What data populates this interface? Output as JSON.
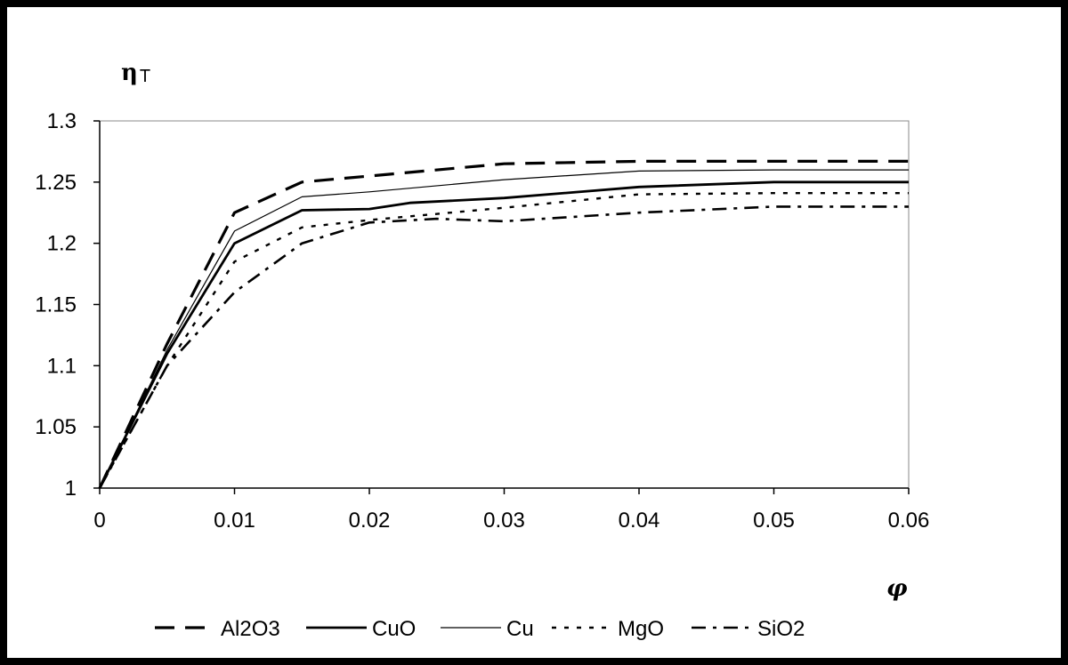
{
  "chart_data": {
    "type": "line",
    "ylabel_main": "η",
    "ylabel_sub": "T",
    "xlabel": "φ",
    "xlim": [
      0,
      0.06
    ],
    "ylim": [
      1,
      1.3
    ],
    "xticks": [
      "0",
      "0.01",
      "0.02",
      "0.03",
      "0.04",
      "0.05",
      "0.06"
    ],
    "yticks": [
      "1",
      "1.05",
      "1.1",
      "1.15",
      "1.2",
      "1.25",
      "1.3"
    ],
    "grid": false,
    "legend_position": "bottom",
    "series": [
      {
        "name": "Al2O3",
        "style": "long-dash",
        "width": 3.2,
        "x": [
          0,
          0.005,
          0.01,
          0.015,
          0.02,
          0.03,
          0.04,
          0.05,
          0.06
        ],
        "y": [
          1,
          1.118,
          1.225,
          1.25,
          1.255,
          1.265,
          1.267,
          1.267,
          1.267
        ]
      },
      {
        "name": "CuO",
        "style": "solid",
        "width": 2.8,
        "x": [
          0,
          0.005,
          0.01,
          0.015,
          0.02,
          0.023,
          0.03,
          0.04,
          0.05,
          0.06
        ],
        "y": [
          1,
          1.11,
          1.2,
          1.227,
          1.228,
          1.233,
          1.237,
          1.246,
          1.25,
          1.25
        ]
      },
      {
        "name": "Cu",
        "style": "solid",
        "width": 1.2,
        "x": [
          0,
          0.005,
          0.01,
          0.015,
          0.02,
          0.03,
          0.04,
          0.05,
          0.06
        ],
        "y": [
          1,
          1.113,
          1.21,
          1.238,
          1.242,
          1.252,
          1.259,
          1.26,
          1.26
        ]
      },
      {
        "name": "MgO",
        "style": "dotted",
        "width": 2.4,
        "x": [
          0,
          0.005,
          0.01,
          0.015,
          0.02,
          0.03,
          0.04,
          0.05,
          0.06
        ],
        "y": [
          1,
          1.1,
          1.185,
          1.213,
          1.219,
          1.229,
          1.24,
          1.241,
          1.241
        ]
      },
      {
        "name": "SiO2",
        "style": "dash-dot",
        "width": 2.6,
        "x": [
          0,
          0.005,
          0.01,
          0.015,
          0.02,
          0.025,
          0.03,
          0.04,
          0.05,
          0.06
        ],
        "y": [
          1,
          1.1,
          1.16,
          1.2,
          1.217,
          1.22,
          1.218,
          1.225,
          1.23,
          1.23
        ]
      }
    ]
  }
}
